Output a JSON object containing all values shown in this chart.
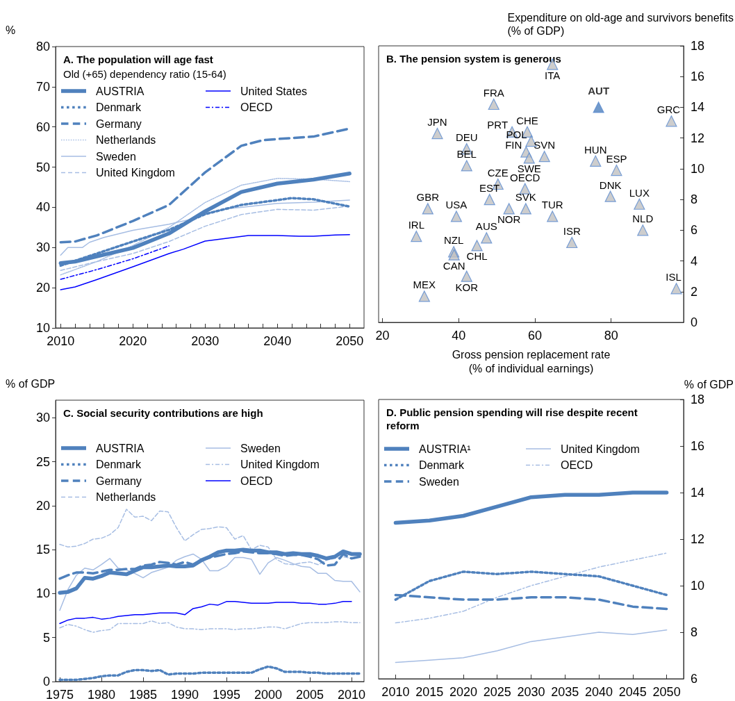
{
  "chart_data": [
    {
      "type": "line",
      "title": "A. The population will age fast",
      "subtitle": "Old (+65) dependency ratio (15-64)",
      "ylabel": "%",
      "legend": "top left",
      "marker": "none",
      "xlim": [
        2009.3,
        2052
      ],
      "ylim": [
        10,
        80
      ],
      "yticks": [
        10,
        20,
        30,
        40,
        50,
        60,
        70,
        80
      ],
      "xticks": [
        2010,
        {
          "value": 2012,
          "label": null
        },
        {
          "value": 2014,
          "label": null
        },
        {
          "value": 2016,
          "label": null
        },
        {
          "value": 2018,
          "label": null
        },
        2020,
        {
          "value": 2022,
          "label": null
        },
        {
          "value": 2024,
          "label": null
        },
        {
          "value": 2026,
          "label": null
        },
        {
          "value": 2028,
          "label": null
        },
        2030,
        {
          "value": 2032,
          "label": null
        },
        {
          "value": 2034,
          "label": null
        },
        {
          "value": 2036,
          "label": null
        },
        {
          "value": 2038,
          "label": null
        },
        2040,
        {
          "value": 2042,
          "label": null
        },
        {
          "value": 2044,
          "label": null
        },
        {
          "value": 2046,
          "label": null
        },
        {
          "value": 2048,
          "label": null
        },
        2050
      ],
      "series": [
        {
          "name": "AUSTRIA",
          "color": "#4f81bd",
          "line_style": "solid",
          "x": [
            2010,
            2012,
            2015,
            2020,
            2025,
            2030,
            2035,
            2040,
            2045,
            2050
          ],
          "values": [
            26.1,
            26.5,
            27.8,
            29.9,
            33.5,
            39,
            43.8,
            45.9,
            46.9,
            48.4
          ]
        },
        {
          "name": "Denmark",
          "color": "#4f81bd",
          "line_style": "dotted",
          "x": [
            2010,
            2015,
            2020,
            2025,
            2030,
            2035,
            2040,
            2042,
            2045,
            2050
          ],
          "values": [
            25.5,
            28.5,
            31.5,
            34.4,
            38.3,
            40.6,
            41.8,
            42.3,
            42,
            40.2
          ]
        },
        {
          "name": "Germany",
          "color": "#4f81bd",
          "line_style": "dashed",
          "x": [
            2010,
            2012,
            2015,
            2020,
            2025,
            2030,
            2035,
            2038,
            2040,
            2045,
            2050
          ],
          "values": [
            31.3,
            31.5,
            33,
            36.6,
            40.6,
            48.7,
            55.3,
            56.7,
            57,
            57.6,
            59.6
          ]
        },
        {
          "name": "Netherlands",
          "color": "#a6bde3",
          "line_style": "dotted",
          "x": [
            2010,
            2015,
            2020,
            2025,
            2030,
            2035,
            2040,
            2045,
            2050
          ],
          "values": [
            23.2,
            26.5,
            30.5,
            35,
            41.2,
            45.5,
            47.2,
            47,
            46.4
          ]
        },
        {
          "name": "Sweden",
          "color": "#a6bde3",
          "line_style": "solid",
          "x": [
            2010,
            2011,
            2013,
            2014,
            2016,
            2020,
            2025,
            2028,
            2030,
            2033,
            2035,
            2040,
            2045,
            2050
          ],
          "values": [
            28.1,
            30,
            30,
            31.3,
            32.5,
            34.3,
            35.8,
            37,
            38.5,
            39.7,
            40,
            41,
            41.3,
            41.8
          ]
        },
        {
          "name": "United Kingdom",
          "color": "#a6bde3",
          "line_style": "dashed",
          "x": [
            2010,
            2015,
            2020,
            2025,
            2030,
            2035,
            2040,
            2045,
            2050
          ],
          "values": [
            24.3,
            26.5,
            28.5,
            31.5,
            35.3,
            38.2,
            39.5,
            39.3,
            40.3
          ]
        },
        {
          "name": "United States",
          "color": "#0000ff",
          "line_style": "solid",
          "x": [
            2010,
            2012,
            2015,
            2020,
            2025,
            2027,
            2030,
            2033,
            2036,
            2040,
            2043,
            2045,
            2048,
            2050
          ],
          "values": [
            19.5,
            20.2,
            22,
            25.2,
            28.5,
            29.6,
            31.6,
            32.3,
            33,
            33,
            32.8,
            32.8,
            33.1,
            33.2
          ]
        },
        {
          "name": "OECD",
          "color": "#0000ff",
          "line_style": "dashdot",
          "x": [
            2010,
            2015,
            2020,
            2025
          ],
          "values": [
            22.1,
            24.5,
            27.2,
            30.4
          ]
        }
      ]
    },
    {
      "type": "scatter",
      "title": "B. The pension system is generous",
      "xlabel": "Gross pension replacement rate\n(% of individual earnings)",
      "ylabel": "Expenditure on old-age and survivors benefits\n(% of GDP)",
      "marker": "triangle",
      "xlim": [
        19,
        99
      ],
      "xticks": [
        20,
        40,
        60,
        80
      ],
      "ylim": [
        0,
        18
      ],
      "yticks": [
        0,
        2,
        4,
        6,
        8,
        10,
        12,
        14,
        16,
        18
      ],
      "series": [
        {
          "color": "#c0c0c0",
          "x": [
            64.6,
            49.2,
            95.8,
            34.4,
            54.0,
            58.0,
            59.0,
            42.1,
            57.7,
            62.5,
            58.5,
            75.9,
            42.1,
            81.4,
            50.3,
            57.4,
            79.8,
            48.1,
            87.4,
            31.9,
            53.2,
            57.6,
            39.4,
            64.6,
            88.3,
            28.9,
            47.3,
            69.7,
            44.8,
            38.7,
            38.8,
            42.1,
            97.1,
            31.0
          ],
          "values": [
            16.8,
            14.2,
            13.1,
            12.3,
            12.4,
            12.4,
            11.8,
            11.3,
            11.1,
            10.8,
            10.7,
            10.5,
            10.2,
            9.9,
            9.0,
            8.7,
            8.2,
            8.0,
            7.7,
            7.4,
            7.4,
            7.4,
            6.9,
            6.9,
            6.0,
            5.6,
            5.5,
            5.2,
            5.0,
            4.6,
            4.4,
            3.0,
            2.2,
            1.7
          ]
        },
        {
          "name": "AUT",
          "color": "#4f81bd",
          "x": [
            76.7
          ],
          "values": [
            14.0
          ]
        }
      ],
      "annotations": [
        {
          "text": "ITA",
          "x": 64.6,
          "y": 16.8
        },
        {
          "text": "FRA",
          "x": 49.2,
          "y": 14.2
        },
        {
          "text": "GRC",
          "x": 95.8,
          "y": 13.1
        },
        {
          "text": "JPN",
          "x": 34.4,
          "y": 12.3
        },
        {
          "text": "PRT",
          "x": 54.0,
          "y": 12.4
        },
        {
          "text": "CHE",
          "x": 58.0,
          "y": 12.4
        },
        {
          "text": "POL",
          "x": 59.0,
          "y": 11.8
        },
        {
          "text": "DEU",
          "x": 42.1,
          "y": 11.3
        },
        {
          "text": "FIN",
          "x": 57.7,
          "y": 11.1
        },
        {
          "text": "SVN",
          "x": 62.5,
          "y": 10.8
        },
        {
          "text": "SWE",
          "x": 58.5,
          "y": 10.7
        },
        {
          "text": "HUN",
          "x": 75.9,
          "y": 10.5
        },
        {
          "text": "BEL",
          "x": 42.1,
          "y": 10.2
        },
        {
          "text": "ESP",
          "x": 81.4,
          "y": 9.9
        },
        {
          "text": "CZE",
          "x": 50.3,
          "y": 9.0
        },
        {
          "text": "OECD",
          "x": 57.4,
          "y": 8.7
        },
        {
          "text": "DNK",
          "x": 79.8,
          "y": 8.2
        },
        {
          "text": "EST",
          "x": 48.1,
          "y": 8.0
        },
        {
          "text": "LUX",
          "x": 87.4,
          "y": 7.7
        },
        {
          "text": "GBR",
          "x": 31.9,
          "y": 7.4
        },
        {
          "text": "NOR",
          "x": 53.2,
          "y": 7.4
        },
        {
          "text": "SVK",
          "x": 57.6,
          "y": 7.4
        },
        {
          "text": "USA",
          "x": 39.4,
          "y": 6.9
        },
        {
          "text": "TUR",
          "x": 64.6,
          "y": 6.9
        },
        {
          "text": "NLD",
          "x": 88.3,
          "y": 6.0
        },
        {
          "text": "IRL",
          "x": 28.9,
          "y": 5.6
        },
        {
          "text": "AUS",
          "x": 47.3,
          "y": 5.5
        },
        {
          "text": "ISR",
          "x": 69.7,
          "y": 5.2
        },
        {
          "text": "CHL",
          "x": 44.8,
          "y": 5.0
        },
        {
          "text": "NZL",
          "x": 38.7,
          "y": 4.6
        },
        {
          "text": "CAN",
          "x": 38.8,
          "y": 4.4
        },
        {
          "text": "KOR",
          "x": 42.1,
          "y": 3.0
        },
        {
          "text": "ISL",
          "x": 97.1,
          "y": 2.2
        },
        {
          "text": "MEX",
          "x": 31.0,
          "y": 1.7
        }
      ]
    },
    {
      "type": "line",
      "title": "C. Social security contributions are high",
      "ylabel": "% of GDP",
      "legend": "top left",
      "marker": "none",
      "xlim": [
        1974.5,
        2011.5
      ],
      "xticks": [
        1975,
        1980,
        1985,
        1990,
        1995,
        2000,
        2005,
        2010
      ],
      "ylim": [
        0,
        32
      ],
      "yticks": [
        0,
        5,
        10,
        15,
        20,
        25,
        30
      ],
      "x": [
        1975,
        1976,
        1977,
        1978,
        1979,
        1980,
        1981,
        1982,
        1983,
        1984,
        1985,
        1986,
        1987,
        1988,
        1989,
        1990,
        1991,
        1992,
        1993,
        1994,
        1995,
        1996,
        1997,
        1998,
        1999,
        2000,
        2001,
        2002,
        2003,
        2004,
        2005,
        2006,
        2007,
        2008,
        2009,
        2010,
        2011
      ],
      "series": [
        {
          "name": "AUSTRIA",
          "color": "#4f81bd",
          "line_style": "solid",
          "values": [
            10.1,
            10.2,
            10.6,
            11.8,
            11.7,
            12.0,
            12.4,
            12.3,
            12.2,
            12.6,
            13.0,
            13.0,
            13.1,
            13.2,
            13.1,
            13.1,
            13.2,
            13.8,
            14.2,
            14.7,
            14.9,
            14.9,
            15.0,
            14.9,
            14.9,
            14.7,
            14.7,
            14.5,
            14.6,
            14.5,
            14.5,
            14.3,
            14.0,
            14.2,
            14.8,
            14.5,
            14.5
          ]
        },
        {
          "name": "Denmark",
          "color": "#4f81bd",
          "line_style": "dotted",
          "values": [
            0.2,
            0.2,
            0.2,
            0.3,
            0.4,
            0.6,
            0.7,
            0.7,
            1.1,
            1.3,
            1.3,
            1.2,
            1.3,
            0.8,
            0.9,
            0.9,
            0.9,
            1.0,
            1.0,
            1.0,
            1.0,
            1.0,
            1.0,
            1.0,
            1.4,
            1.7,
            1.5,
            1.1,
            1.1,
            1.1,
            1.0,
            1.0,
            0.9,
            0.9,
            0.9,
            0.9,
            0.9
          ]
        },
        {
          "name": "Germany",
          "color": "#4f81bd",
          "line_style": "dashed",
          "values": [
            11.7,
            12.1,
            12.4,
            12.4,
            12.3,
            12.5,
            12.7,
            12.7,
            12.8,
            12.8,
            13.2,
            13.3,
            13.6,
            13.5,
            13.3,
            13.6,
            13.3,
            13.8,
            14.1,
            14.3,
            14.5,
            14.6,
            14.8,
            14.7,
            14.6,
            14.6,
            14.5,
            14.3,
            14.4,
            14.4,
            14.2,
            13.9,
            13.2,
            13.3,
            14.5,
            14.0,
            14.2
          ]
        },
        {
          "name": "Netherlands",
          "color": "#a6bde3",
          "line_style": "dashed",
          "values": [
            15.6,
            15.3,
            15.4,
            15.7,
            16.2,
            16.3,
            16.7,
            17.5,
            19.6,
            18.7,
            18.8,
            18.3,
            19.4,
            19.3,
            17.5,
            16.0,
            16.7,
            17.3,
            17.4,
            17.6,
            17.5,
            16.2,
            16.6,
            15.0,
            15.5,
            15.3,
            13.9,
            13.4,
            13.3,
            13.5,
            13.6,
            13.3,
            13.8,
            14.0,
            14.2,
            14.0,
            14.3
          ]
        },
        {
          "name": "Sweden",
          "color": "#a6bde3",
          "line_style": "solid",
          "values": [
            8.1,
            10.5,
            12.1,
            12.9,
            12.7,
            13.3,
            14.0,
            12.9,
            12.7,
            12.3,
            11.8,
            12.4,
            12.7,
            13.0,
            13.8,
            14.2,
            14.5,
            13.9,
            12.6,
            12.6,
            13.1,
            14.1,
            14.1,
            13.9,
            12.2,
            13.5,
            14.1,
            13.8,
            13.4,
            13.1,
            13.0,
            12.3,
            12.3,
            11.5,
            11.4,
            11.4,
            10.2
          ]
        },
        {
          "name": "United Kingdom",
          "color": "#a6bde3",
          "line_style": "dashdot",
          "values": [
            6.1,
            6.5,
            6.3,
            5.9,
            5.6,
            5.8,
            5.9,
            6.6,
            6.6,
            6.6,
            6.6,
            6.9,
            6.6,
            6.7,
            6.2,
            6.0,
            6.0,
            5.9,
            6.0,
            6.0,
            6.0,
            5.9,
            6.0,
            6.0,
            6.1,
            6.2,
            6.2,
            6.0,
            6.3,
            6.6,
            6.7,
            6.7,
            6.7,
            6.8,
            6.8,
            6.7,
            6.7
          ]
        },
        {
          "name": "OECD",
          "color": "#0000ff",
          "line_style": "solid",
          "values": [
            6.6,
            7.0,
            7.2,
            7.2,
            7.3,
            7.1,
            7.2,
            7.4,
            7.5,
            7.6,
            7.6,
            7.7,
            7.8,
            7.8,
            7.8,
            7.6,
            8.3,
            8.5,
            8.8,
            8.7,
            9.1,
            9.1,
            9.0,
            8.9,
            8.9,
            8.9,
            9.0,
            9.0,
            9.0,
            8.9,
            8.9,
            8.8,
            8.8,
            8.9,
            9.1,
            9.1,
            null
          ]
        }
      ]
    },
    {
      "type": "line",
      "title": "D. Public pension spending will rise despite recent reform",
      "ylabel": "% of GDP",
      "legend": "top left",
      "marker": "none",
      "categories": [
        "2010",
        "2015",
        "2020",
        "2025",
        "2030",
        "2035",
        "2040",
        "2045",
        "2050"
      ],
      "ylim": [
        6,
        18
      ],
      "yticks": [
        6,
        8,
        10,
        12,
        14,
        16,
        18
      ],
      "series": [
        {
          "name": "AUSTRIA¹",
          "color": "#4f81bd",
          "line_style": "solid",
          "values": [
            12.7,
            12.8,
            13.0,
            13.4,
            13.8,
            13.9,
            13.9,
            14.0,
            14.0
          ]
        },
        {
          "name": "Denmark",
          "color": "#4f81bd",
          "line_style": "dotted",
          "values": [
            9.4,
            10.2,
            10.6,
            10.5,
            10.6,
            10.5,
            10.4,
            10.0,
            9.6
          ]
        },
        {
          "name": "Sweden",
          "color": "#4f81bd",
          "line_style": "dashed",
          "values": [
            9.6,
            9.5,
            9.4,
            9.4,
            9.5,
            9.5,
            9.4,
            9.1,
            9.0
          ]
        },
        {
          "name": "United Kingdom",
          "color": "#a6bde3",
          "line_style": "solid",
          "values": [
            6.7,
            6.8,
            6.9,
            7.2,
            7.6,
            7.8,
            8.0,
            7.9,
            8.1
          ]
        },
        {
          "name": "OECD",
          "color": "#a6bde3",
          "line_style": "dashdot",
          "values": [
            8.4,
            8.6,
            8.9,
            9.5,
            10.0,
            10.4,
            10.8,
            11.1,
            11.4
          ]
        }
      ]
    }
  ]
}
